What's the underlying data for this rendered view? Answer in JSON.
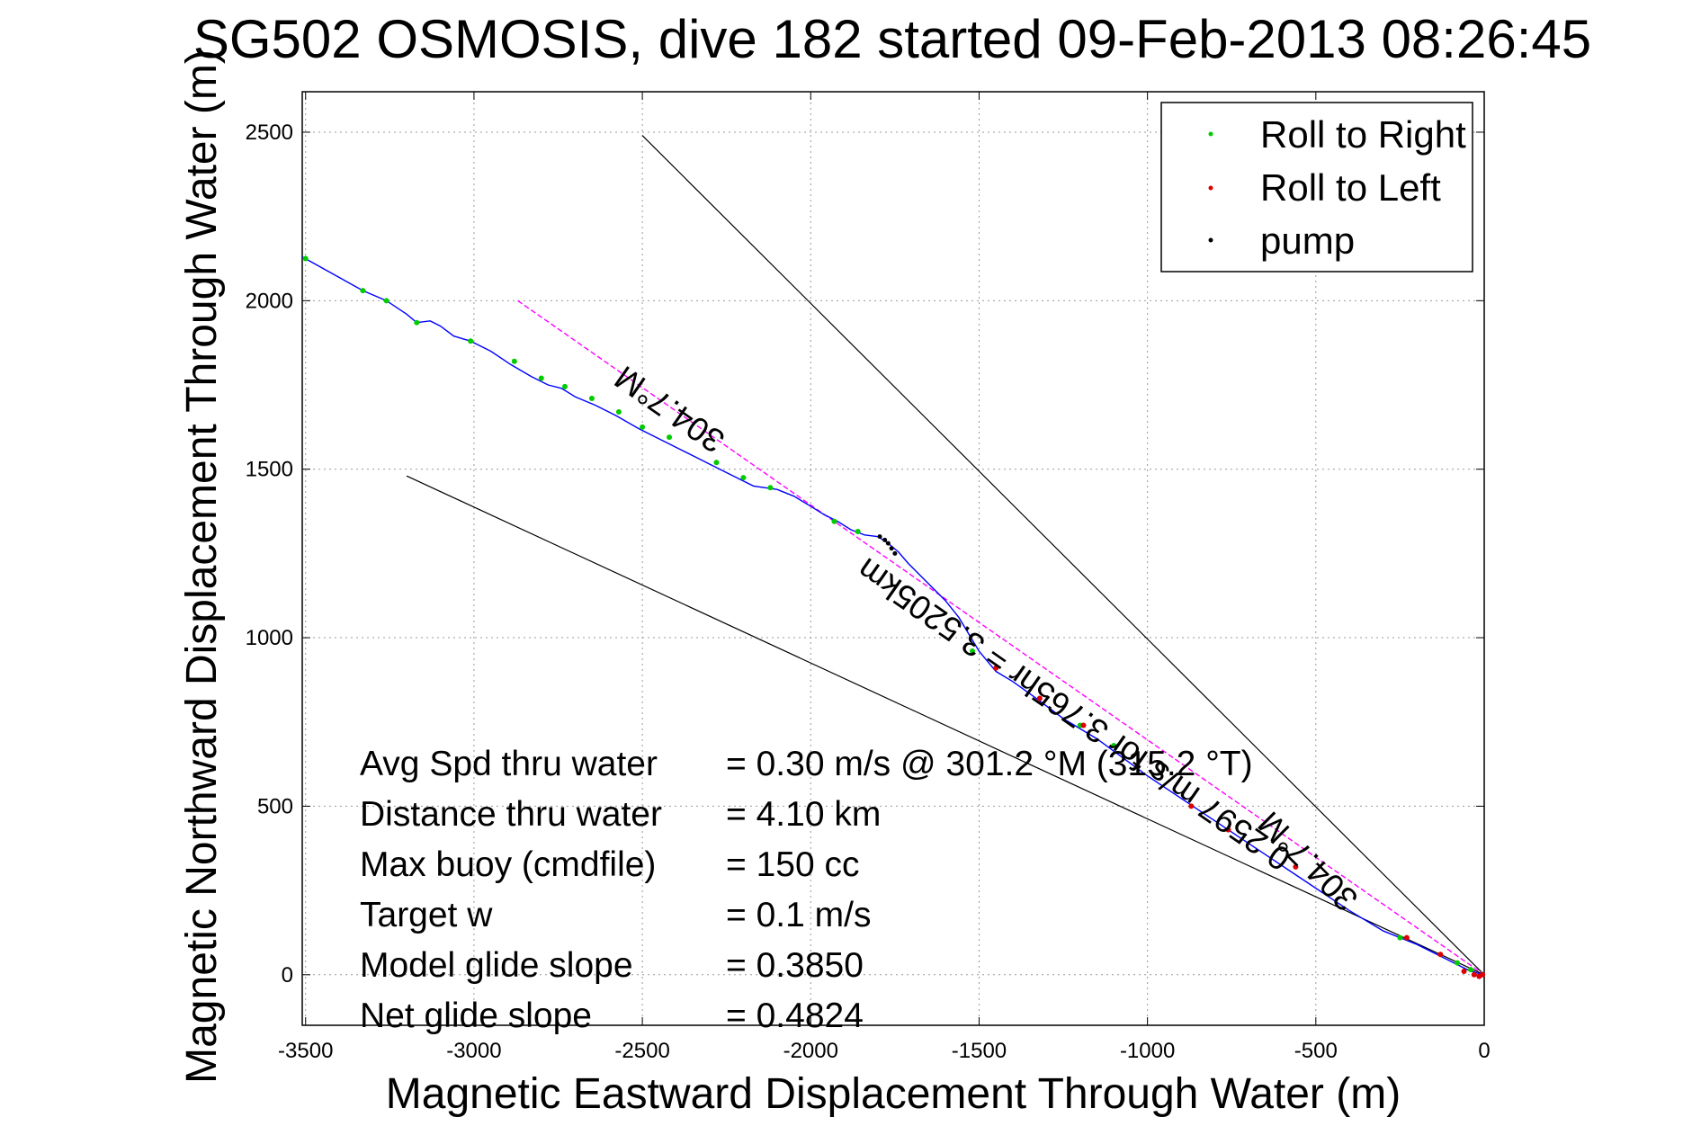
{
  "chart_data": {
    "type": "line",
    "title": "SG502 OSMOSIS, dive 182 started 09-Feb-2013 08:26:45",
    "xlabel": "Magnetic Eastward Displacement Through Water (m)",
    "ylabel": "Magnetic Northward Displacement Through Water (m)",
    "xlim": [
      -3510,
      0
    ],
    "ylim": [
      -150,
      2620
    ],
    "xticks": [
      -3500,
      -3000,
      -2500,
      -2000,
      -1500,
      -1000,
      -500,
      0
    ],
    "yticks": [
      0,
      500,
      1000,
      1500,
      2000,
      2500
    ],
    "grid": true,
    "legend_position": "top-right",
    "colors": {
      "track": "#0000ff",
      "roll_right": "#00cc00",
      "roll_left": "#dd0000",
      "pump": "#000000",
      "heading_line": "#ff00ff",
      "reference_line": "#000000"
    },
    "legend": [
      "Roll to Right",
      "Roll to Left",
      "pump"
    ],
    "track": {
      "x": [
        -3510,
        -3420,
        -3330,
        -3260,
        -3200,
        -3170,
        -3130,
        -3100,
        -3060,
        -3010,
        -2950,
        -2890,
        -2830,
        -2780,
        -2740,
        -2700,
        -2640,
        -2580,
        -2510,
        -2450,
        -2380,
        -2300,
        -2230,
        -2170,
        -2100,
        -2050,
        -2000,
        -1960,
        -1920,
        -1880,
        -1840,
        -1800,
        -1770,
        -1740,
        -1710,
        -1650,
        -1600,
        -1560,
        -1500,
        -1450,
        -1400,
        -1330,
        -1250,
        -1150,
        -1000,
        -850,
        -700,
        -550,
        -400,
        -300,
        -200,
        -100,
        -50,
        -20,
        0
      ],
      "y": [
        2130,
        2080,
        2030,
        2000,
        1960,
        1935,
        1940,
        1925,
        1895,
        1880,
        1850,
        1810,
        1775,
        1750,
        1740,
        1715,
        1690,
        1660,
        1620,
        1590,
        1555,
        1515,
        1480,
        1450,
        1440,
        1420,
        1390,
        1365,
        1345,
        1320,
        1305,
        1300,
        1280,
        1255,
        1220,
        1160,
        1110,
        1060,
        960,
        900,
        870,
        820,
        760,
        700,
        590,
        490,
        390,
        290,
        190,
        130,
        90,
        40,
        15,
        5,
        0
      ]
    },
    "roll_to_right_points": {
      "x": [
        -3500,
        -3330,
        -3260,
        -3170,
        -3010,
        -2880,
        -2800,
        -2730,
        -2650,
        -2570,
        -2500,
        -2420,
        -2280,
        -2200,
        -2120,
        -1930,
        -1860,
        -1520,
        -1200,
        -1100,
        -250,
        -80,
        -40
      ],
      "y": [
        2125,
        2030,
        2000,
        1935,
        1880,
        1820,
        1770,
        1745,
        1710,
        1670,
        1625,
        1595,
        1520,
        1475,
        1445,
        1345,
        1315,
        960,
        740,
        680,
        110,
        35,
        15
      ]
    },
    "roll_to_left_points": {
      "x": [
        -1450,
        -1320,
        -1190,
        -1030,
        -870,
        -760,
        -560,
        -230,
        -130,
        -60,
        -30,
        -15,
        -5
      ],
      "y": [
        910,
        820,
        740,
        620,
        500,
        430,
        320,
        110,
        60,
        10,
        0,
        -5,
        0
      ]
    },
    "pump_points": {
      "x": [
        -1795,
        -1780,
        -1770,
        -1760,
        -1750
      ],
      "y": [
        1300,
        1290,
        1280,
        1265,
        1250
      ]
    },
    "heading_line": {
      "x": [
        -2870,
        0
      ],
      "y": [
        2000,
        0
      ],
      "label": "304.7°M",
      "label_position": {
        "x": -2400,
        "y": 1705
      }
    },
    "reference_lines": [
      {
        "x": [
          -2500,
          0
        ],
        "y": [
          2490,
          0
        ]
      },
      {
        "x": [
          -3200,
          0
        ],
        "y": [
          1480,
          0
        ]
      }
    ],
    "reference_label": {
      "text": "304.7°M",
      "position": {
        "x": -500,
        "y": 360
      }
    },
    "current_label": {
      "text": "0.2597 m/s for 3.765hr = 3.5205km",
      "position": {
        "x": -1200,
        "y": 800
      }
    },
    "info_table": [
      {
        "label": "Avg Spd thru water",
        "value": "=  0.30 m/s @ 301.2 °M (315.2 °T)"
      },
      {
        "label": "Distance thru water",
        "value": "=  4.10 km"
      },
      {
        "label": "Max buoy (cmdfile)",
        "value": "= 150 cc"
      },
      {
        "label": "Target w",
        "value": "= 0.1 m/s"
      },
      {
        "label": "Model glide slope",
        "value": "= 0.3850"
      },
      {
        "label": "Net glide slope",
        "value": "= 0.4824"
      }
    ]
  }
}
